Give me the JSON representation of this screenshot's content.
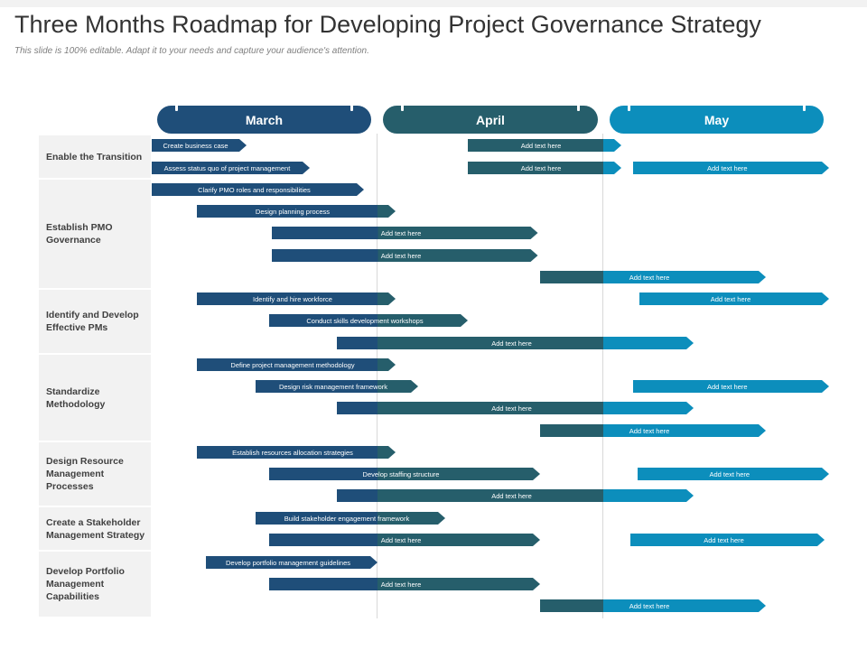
{
  "header": {
    "title": "Three Months Roadmap for Developing Project Governance Strategy",
    "subtitle": "This slide is 100% editable. Adapt it to your needs and capture your audience's attention."
  },
  "colors": {
    "march": "#1f4e79",
    "april": "#265e6b",
    "may": "#0c8ebc"
  },
  "months": [
    {
      "label": "March",
      "key": "march"
    },
    {
      "label": "April",
      "key": "april"
    },
    {
      "label": "May",
      "key": "may"
    }
  ],
  "categories": [
    {
      "label": "Enable the Transition"
    },
    {
      "label": "Establish PMO\nGovernance"
    },
    {
      "label": "Identify and Develop\nEffective PMs"
    },
    {
      "label": "Standardize\nMethodology"
    },
    {
      "label": "Design Resource\nManagement\nProcesses"
    },
    {
      "label": "Create a Stakeholder\nManagement Strategy"
    },
    {
      "label": "Develop Portfolio\nManagement\nCapabilities"
    }
  ],
  "tasks": [
    {
      "label": "Create business case",
      "start": 0.0,
      "end": 0.42
    },
    {
      "label": "Add text  here",
      "start": 1.4,
      "end": 2.08
    },
    {
      "label": "Assess status quo of project management",
      "start": 0.0,
      "end": 0.7
    },
    {
      "label": "Add text  here",
      "start": 1.4,
      "end": 2.08
    },
    {
      "label": "Add text  here",
      "start": 2.13,
      "end": 3.0
    },
    {
      "label": "Clarify PMO roles and responsibilities",
      "start": 0.0,
      "end": 0.94
    },
    {
      "label": "Design planning process",
      "start": 0.2,
      "end": 1.08
    },
    {
      "label": "Add text  here",
      "start": 0.53,
      "end": 1.71
    },
    {
      "label": "Add text  here",
      "start": 0.53,
      "end": 1.71
    },
    {
      "label": "Add text  here",
      "start": 1.72,
      "end": 2.72
    },
    {
      "label": "Identify and hire workforce",
      "start": 0.2,
      "end": 1.08
    },
    {
      "label": "Add text  here",
      "start": 2.16,
      "end": 3.03
    },
    {
      "label": "Conduct skills development workshops",
      "start": 0.52,
      "end": 1.4
    },
    {
      "label": "Add text  here",
      "start": 0.82,
      "end": 2.4
    },
    {
      "label": "Define project management methodology",
      "start": 0.2,
      "end": 1.08
    },
    {
      "label": "Design risk management  framework",
      "start": 0.46,
      "end": 1.18
    },
    {
      "label": "Add text  here",
      "start": 2.13,
      "end": 3.0
    },
    {
      "label": "Add text  here",
      "start": 0.82,
      "end": 2.4
    },
    {
      "label": "Add text  here",
      "start": 1.72,
      "end": 2.72
    },
    {
      "label": "Establish resources allocation strategies",
      "start": 0.2,
      "end": 1.08
    },
    {
      "label": "Develop staffing structure",
      "start": 0.52,
      "end": 1.72
    },
    {
      "label": "Add text  here",
      "start": 2.15,
      "end": 3.01
    },
    {
      "label": "Add text  here",
      "start": 0.82,
      "end": 2.4
    },
    {
      "label": "Build stakeholder engagement  framework",
      "start": 0.46,
      "end": 1.3
    },
    {
      "label": "Add text  here",
      "start": 0.52,
      "end": 1.72
    },
    {
      "label": "Add text  here",
      "start": 2.12,
      "end": 2.98
    },
    {
      "label": "Develop portfolio management guidelines",
      "start": 0.24,
      "end": 1.0
    },
    {
      "label": "Add text  here",
      "start": 0.52,
      "end": 1.72
    },
    {
      "label": "Add text  here",
      "start": 1.72,
      "end": 2.72
    }
  ]
}
